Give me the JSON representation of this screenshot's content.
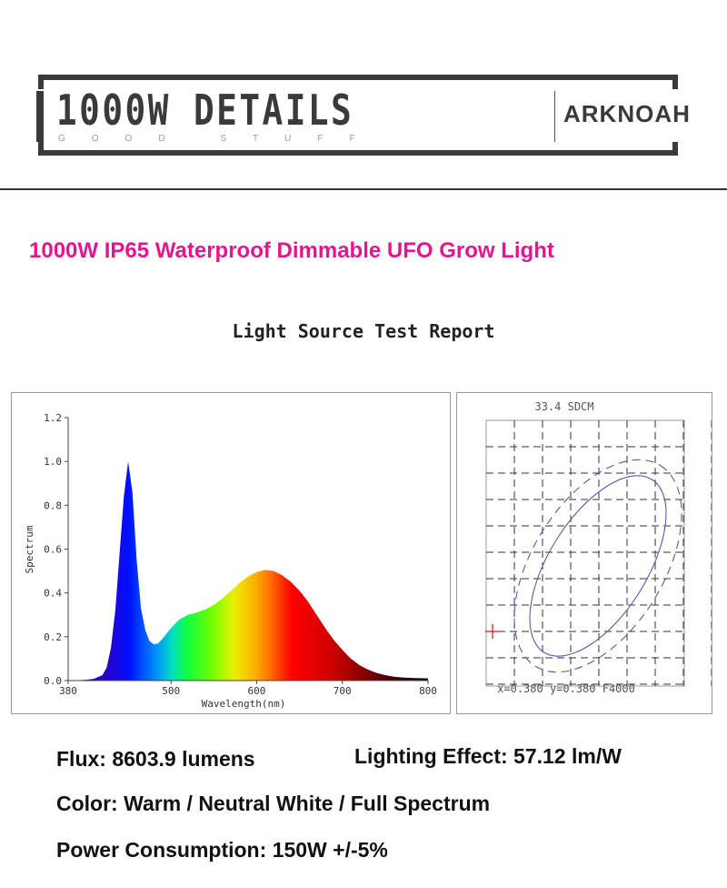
{
  "header": {
    "title": "1000W DETAILS",
    "subtitle": "GOOD STUFF",
    "brand": "ARKNOAH"
  },
  "product_title": "1000W IP65 Waterproof Dimmable UFO Grow Light",
  "report_title": "Light Source Test Report",
  "specs": {
    "flux": "Flux: 8603.9 lumens",
    "effect": "Lighting Effect: 57.12 lm/W",
    "color": "Color: Warm / Neutral White / Full Spectrum",
    "power": "Power Consumption: 150W +/-5%"
  },
  "chart_data": [
    {
      "type": "area",
      "title": "",
      "xlabel": "Wavelength(nm)",
      "ylabel": "Spectrum",
      "xlim": [
        380,
        800
      ],
      "ylim": [
        0,
        1.2
      ],
      "xticks": [
        "380",
        "500",
        "600",
        "700",
        "800"
      ],
      "yticks": [
        "0.0",
        "0.2",
        "0.4",
        "0.6",
        "0.8",
        "1.0",
        "1.2"
      ],
      "x": [
        380,
        400,
        410,
        420,
        425,
        430,
        435,
        440,
        445,
        450,
        455,
        460,
        465,
        470,
        475,
        480,
        485,
        490,
        495,
        500,
        510,
        520,
        530,
        540,
        550,
        560,
        570,
        580,
        590,
        600,
        610,
        620,
        630,
        640,
        650,
        660,
        670,
        680,
        690,
        700,
        710,
        720,
        730,
        740,
        750,
        760,
        770,
        780,
        790,
        800
      ],
      "y": [
        0.0,
        0.003,
        0.008,
        0.025,
        0.06,
        0.15,
        0.32,
        0.58,
        0.84,
        1.0,
        0.86,
        0.55,
        0.33,
        0.23,
        0.18,
        0.165,
        0.17,
        0.19,
        0.215,
        0.24,
        0.28,
        0.3,
        0.31,
        0.325,
        0.345,
        0.375,
        0.41,
        0.445,
        0.475,
        0.495,
        0.505,
        0.5,
        0.48,
        0.45,
        0.41,
        0.36,
        0.3,
        0.24,
        0.185,
        0.14,
        0.1,
        0.07,
        0.05,
        0.035,
        0.025,
        0.018,
        0.014,
        0.012,
        0.011,
        0.01
      ],
      "grid": false
    },
    {
      "type": "scatter",
      "title": "33.4 SDCM",
      "footer": "x=0.380 y=0.380 F4000",
      "grid": true,
      "point": {
        "x": 0.38,
        "y": 0.38,
        "color": "#e02020"
      },
      "ellipse_color": "#5a5aa8"
    }
  ]
}
